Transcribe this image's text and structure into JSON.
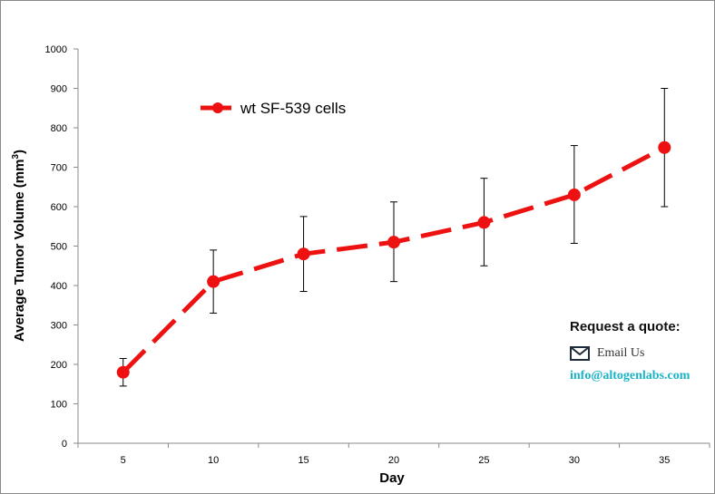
{
  "chart_data": {
    "type": "line",
    "xlabel": "Day",
    "ylabel_main": "Average Tumor Volume (mm",
    "ylabel_sup": "3",
    "ylabel_close": ")",
    "x": [
      5,
      10,
      15,
      20,
      25,
      30,
      35
    ],
    "x_tick_labels": [
      "5",
      "10",
      "15",
      "20",
      "25",
      "30",
      "35"
    ],
    "y_tick_labels": [
      "0",
      "100",
      "200",
      "300",
      "400",
      "500",
      "600",
      "700",
      "800",
      "900",
      "1000"
    ],
    "ylim": [
      0,
      1000
    ],
    "grid": false,
    "legend_position": "top-left",
    "series": [
      {
        "name": "wt SF-539 cells",
        "color": "#ee1111",
        "line_style": "dashed",
        "values": [
          180,
          410,
          480,
          510,
          560,
          630,
          750
        ],
        "error_low": [
          145,
          330,
          385,
          410,
          450,
          507,
          600
        ],
        "error_high": [
          215,
          490,
          575,
          612,
          672,
          755,
          900
        ]
      }
    ]
  },
  "quote": {
    "title": "Request a quote:",
    "email_label": "Email Us",
    "email_address": "info@altogenlabs.com",
    "icon": "envelope-icon",
    "accent_color": "#1bb3c6"
  }
}
